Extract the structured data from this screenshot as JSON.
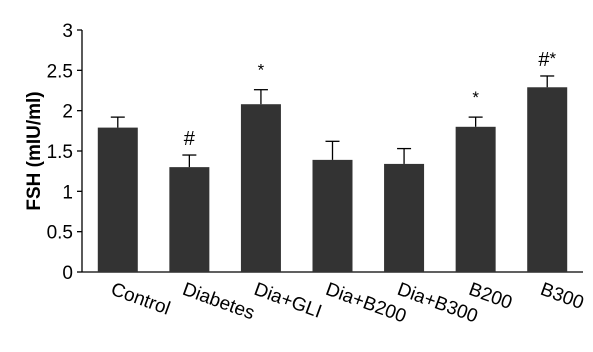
{
  "chart_data": {
    "type": "bar",
    "title": "",
    "xlabel": "",
    "ylabel": "FSH (mIU/ml)",
    "ylim": [
      0,
      3
    ],
    "yticks": [
      "0",
      "0.5",
      "1",
      "1.5",
      "2",
      "2.5",
      "3"
    ],
    "grid": false,
    "categories": [
      "Control",
      "Diabetes",
      "Dia+GLI",
      "Dia+B200",
      "Dia+B300",
      "B200",
      "B300"
    ],
    "values": [
      1.79,
      1.3,
      2.08,
      1.39,
      1.34,
      1.8,
      2.29
    ],
    "errors": [
      0.13,
      0.15,
      0.18,
      0.23,
      0.19,
      0.12,
      0.14
    ],
    "annotations": [
      "",
      "#",
      "*",
      "",
      "",
      "*",
      "#*"
    ],
    "colors": {
      "bar": "#333333",
      "axis": "#000000"
    }
  }
}
